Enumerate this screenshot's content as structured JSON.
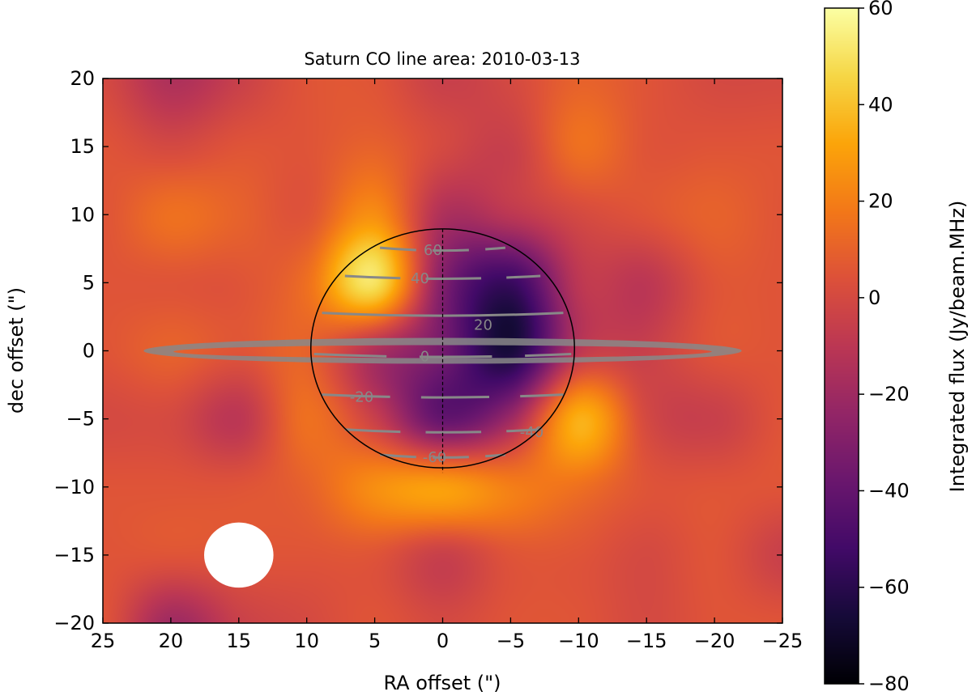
{
  "chart_data": {
    "type": "heatmap",
    "title": "Saturn CO line area: 2010-03-13",
    "xlabel": "RA offset (\")",
    "ylabel": "dec offset (\")",
    "xlim": [
      25,
      -25
    ],
    "ylim": [
      -20,
      20
    ],
    "xticks": [
      "25",
      "20",
      "15",
      "10",
      "5",
      "0",
      "−5",
      "−10",
      "−15",
      "−20",
      "−25"
    ],
    "yticks": [
      "20",
      "15",
      "10",
      "5",
      "0",
      "−5",
      "−10",
      "−15",
      "−20"
    ],
    "colormap": "inferno",
    "colorbar": {
      "label": "Integrated flux (Jy/beam.MHz)",
      "range": [
        -80,
        60
      ],
      "ticks": [
        "60",
        "40",
        "20",
        "0",
        "−20",
        "−40",
        "−60",
        "−80"
      ]
    },
    "grid_x": [
      25,
      20,
      15,
      10,
      5,
      0,
      -5,
      -10,
      -15,
      -20,
      -25
    ],
    "grid_y": [
      20,
      15,
      10,
      5,
      0,
      -5,
      -10,
      -15,
      -20
    ],
    "z": [
      [
        0,
        -15,
        -5,
        5,
        5,
        -5,
        0,
        10,
        5,
        0,
        0
      ],
      [
        5,
        0,
        5,
        5,
        10,
        0,
        -5,
        15,
        5,
        5,
        5
      ],
      [
        5,
        15,
        10,
        5,
        25,
        -15,
        -10,
        0,
        5,
        10,
        5
      ],
      [
        5,
        5,
        5,
        15,
        50,
        -30,
        -55,
        -10,
        -10,
        5,
        5
      ],
      [
        5,
        10,
        5,
        10,
        -15,
        -35,
        -65,
        -10,
        -5,
        5,
        5
      ],
      [
        0,
        0,
        -10,
        15,
        -5,
        -40,
        -20,
        35,
        0,
        -5,
        5
      ],
      [
        5,
        5,
        5,
        10,
        25,
        30,
        20,
        15,
        5,
        5,
        5
      ],
      [
        5,
        5,
        5,
        5,
        5,
        -5,
        5,
        5,
        0,
        5,
        -5
      ],
      [
        5,
        -20,
        -5,
        0,
        5,
        0,
        5,
        5,
        0,
        5,
        5
      ]
    ],
    "overlay": {
      "planet_equatorial_radius": 9.7,
      "planet_polar_radius": 8.8,
      "ring_outer_radius": 22,
      "latitude_labels": [
        "60",
        "40",
        "20",
        "0",
        "-20",
        "-40",
        "-60"
      ],
      "beam_center": [
        15,
        -15
      ],
      "beam_color": "#ffffff",
      "overlay_color": "#888888"
    }
  }
}
